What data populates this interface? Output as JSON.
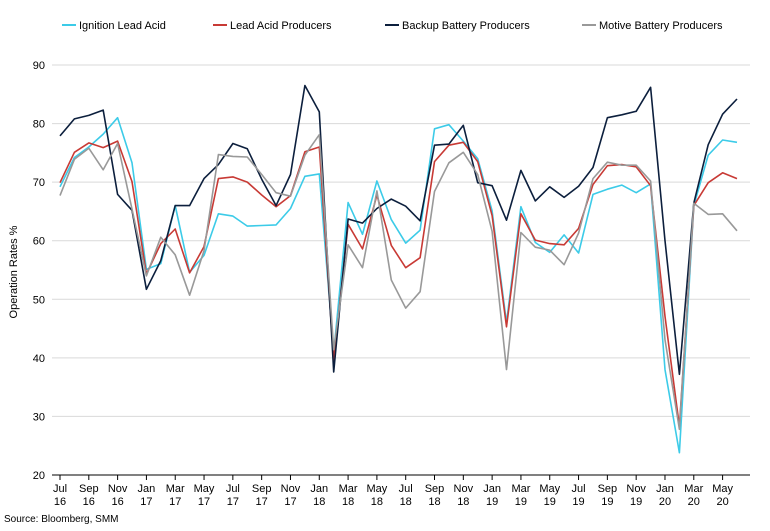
{
  "chart_data": {
    "type": "line",
    "title": "",
    "xlabel": "",
    "ylabel": "Operation Rates %",
    "ylim": [
      20,
      90
    ],
    "yticks": [
      20,
      30,
      40,
      50,
      60,
      70,
      80,
      90
    ],
    "grid": "horizontal",
    "legend_position": "top",
    "source": "Source: Bloomberg, SMM",
    "x_tick_labels": [
      {
        "index": 0,
        "month": "Jul",
        "year": "16"
      },
      {
        "index": 2,
        "month": "Sep",
        "year": "16"
      },
      {
        "index": 4,
        "month": "Nov",
        "year": "16"
      },
      {
        "index": 6,
        "month": "Jan",
        "year": "17"
      },
      {
        "index": 8,
        "month": "Mar",
        "year": "17"
      },
      {
        "index": 10,
        "month": "May",
        "year": "17"
      },
      {
        "index": 12,
        "month": "Jul",
        "year": "17"
      },
      {
        "index": 14,
        "month": "Sep",
        "year": "17"
      },
      {
        "index": 16,
        "month": "Nov",
        "year": "17"
      },
      {
        "index": 18,
        "month": "Jan",
        "year": "18"
      },
      {
        "index": 20,
        "month": "Mar",
        "year": "18"
      },
      {
        "index": 22,
        "month": "May",
        "year": "18"
      },
      {
        "index": 24,
        "month": "Jul",
        "year": "18"
      },
      {
        "index": 26,
        "month": "Sep",
        "year": "18"
      },
      {
        "index": 28,
        "month": "Nov",
        "year": "18"
      },
      {
        "index": 30,
        "month": "Jan",
        "year": "19"
      },
      {
        "index": 32,
        "month": "Mar",
        "year": "19"
      },
      {
        "index": 34,
        "month": "May",
        "year": "19"
      },
      {
        "index": 36,
        "month": "Jul",
        "year": "19"
      },
      {
        "index": 38,
        "month": "Sep",
        "year": "19"
      },
      {
        "index": 40,
        "month": "Nov",
        "year": "19"
      },
      {
        "index": 42,
        "month": "Jan",
        "year": "20"
      },
      {
        "index": 44,
        "month": "Mar",
        "year": "20"
      },
      {
        "index": 46,
        "month": "May",
        "year": "20"
      }
    ],
    "series": [
      {
        "name": "Ignition Lead Acid",
        "color": "#3ccbe8",
        "values": [
          69.2,
          74.2,
          76.0,
          78.2,
          81.0,
          73.3,
          55.1,
          56.1,
          66.0,
          54.6,
          57.5,
          64.6,
          64.2,
          62.5,
          62.6,
          62.7,
          65.5,
          71.0,
          71.4,
          40.8,
          66.5,
          61.1,
          70.2,
          63.6,
          59.6,
          61.8,
          79.1,
          79.8,
          77.0,
          74.0,
          65.1,
          46.0,
          65.8,
          59.7,
          58.0,
          61.0,
          57.9,
          67.9,
          68.8,
          69.5,
          68.2,
          69.7,
          38.0,
          23.8,
          66.0,
          74.6,
          77.2,
          76.8
        ]
      },
      {
        "name": "Lead Acid Producers",
        "color": "#c83a35",
        "values": [
          69.9,
          75.1,
          76.7,
          75.9,
          77.0,
          70.1,
          54.3,
          59.5,
          62.0,
          54.5,
          59.0,
          70.6,
          70.9,
          70.0,
          67.8,
          65.8,
          67.7,
          75.2,
          76.0,
          39.5,
          62.8,
          58.6,
          67.8,
          59.2,
          55.4,
          57.1,
          73.5,
          76.3,
          76.8,
          73.5,
          64.3,
          45.3,
          64.6,
          60.1,
          59.5,
          59.3,
          62.1,
          69.6,
          72.8,
          73.0,
          72.6,
          69.4,
          47.1,
          28.3,
          66.0,
          69.9,
          71.6,
          70.6
        ]
      },
      {
        "name": "Backup Battery Producers",
        "color": "#0c1f3d",
        "values": [
          77.9,
          80.8,
          81.4,
          82.3,
          67.9,
          65.2,
          51.7,
          56.6,
          66.0,
          66.0,
          70.6,
          73.0,
          76.6,
          75.7,
          70.5,
          66.0,
          71.3,
          86.5,
          82.0,
          37.6,
          63.7,
          63.0,
          65.5,
          67.1,
          65.9,
          63.4,
          76.3,
          76.5,
          79.7,
          69.9,
          69.4,
          63.5,
          72.0,
          66.8,
          69.2,
          67.4,
          69.3,
          72.5,
          81.0,
          81.5,
          82.1,
          86.2,
          60.0,
          37.2,
          66.4,
          76.4,
          81.6,
          84.2
        ]
      },
      {
        "name": "Motive Battery Producers",
        "color": "#999999",
        "values": [
          67.7,
          73.9,
          75.8,
          72.1,
          76.6,
          65.4,
          54.0,
          60.6,
          57.6,
          50.7,
          58.3,
          74.7,
          74.4,
          74.3,
          71.3,
          68.2,
          67.6,
          74.6,
          78.1,
          41.4,
          59.3,
          55.4,
          68.5,
          53.3,
          48.5,
          51.3,
          68.4,
          73.3,
          75.1,
          71.3,
          61.6,
          38.0,
          61.4,
          58.9,
          58.4,
          55.9,
          61.3,
          70.6,
          73.4,
          72.9,
          72.9,
          70.2,
          43.1,
          27.8,
          66.4,
          64.5,
          64.6,
          61.7
        ]
      }
    ]
  }
}
